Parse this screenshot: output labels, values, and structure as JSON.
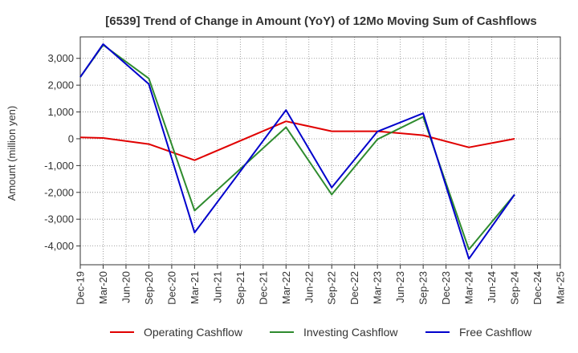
{
  "chart_data": {
    "type": "line",
    "title": "[6539]  Trend of Change in Amount (YoY) of 12Mo Moving Sum of Cashflows",
    "xlabel": "",
    "ylabel": "Amount (million yen)",
    "ylim": [
      -4700,
      3800
    ],
    "yticks": [
      -4000,
      -3000,
      -2000,
      -1000,
      0,
      1000,
      2000,
      3000
    ],
    "ytick_labels": [
      "-4,000",
      "-3,000",
      "-2,000",
      "-1,000",
      "0",
      "1,000",
      "2,000",
      "3,000"
    ],
    "categories": [
      "Dec-19",
      "Mar-20",
      "Jun-20",
      "Sep-20",
      "Dec-20",
      "Mar-21",
      "Jun-21",
      "Sep-21",
      "Dec-21",
      "Mar-22",
      "Jun-22",
      "Sep-22",
      "Dec-22",
      "Mar-23",
      "Jun-23",
      "Sep-23",
      "Dec-23",
      "Mar-24",
      "Jun-24",
      "Sep-24",
      "Dec-24",
      "Mar-25"
    ],
    "series": [
      {
        "name": "Operating Cashflow",
        "color": "#e00000",
        "values": [
          50,
          30,
          null,
          -200,
          null,
          -800,
          null,
          null,
          null,
          650,
          null,
          280,
          null,
          280,
          null,
          130,
          null,
          -320,
          null,
          0,
          null,
          null
        ]
      },
      {
        "name": "Investing Cashflow",
        "color": "#2e8b2e",
        "values": [
          2300,
          3500,
          null,
          2250,
          null,
          -2680,
          null,
          null,
          null,
          430,
          null,
          -2080,
          null,
          -20,
          null,
          820,
          null,
          -4130,
          null,
          -2080,
          null,
          null
        ]
      },
      {
        "name": "Free Cashflow",
        "color": "#0000cc",
        "values": [
          2300,
          3530,
          null,
          2040,
          null,
          -3500,
          null,
          null,
          null,
          1070,
          null,
          -1820,
          null,
          270,
          null,
          950,
          null,
          -4480,
          null,
          -2080,
          null,
          null
        ]
      }
    ],
    "grid": true,
    "legend_position": "bottom"
  }
}
